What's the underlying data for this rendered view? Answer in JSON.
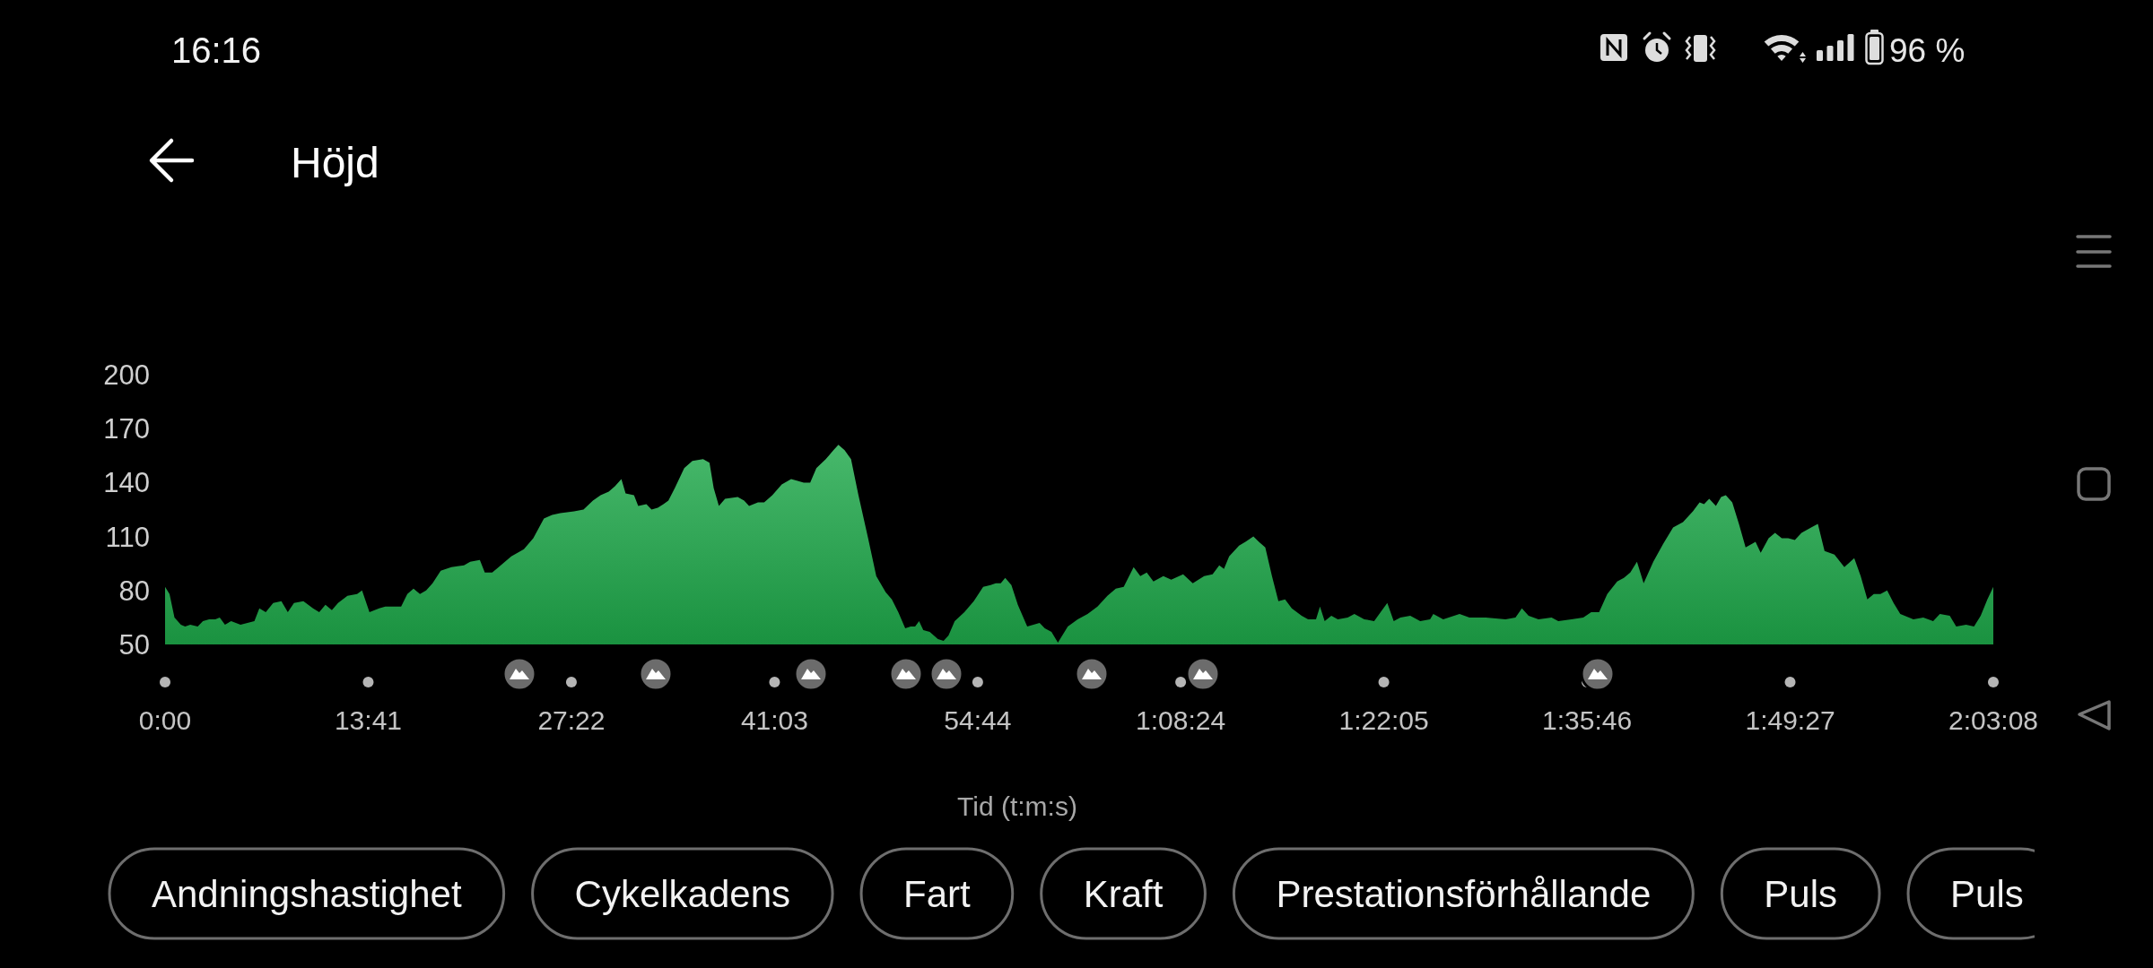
{
  "chart_data": {
    "type": "area",
    "title": "Höjd",
    "xlabel": "Tid (t:m:s)",
    "color": "#1ea84a",
    "x": [
      0,
      18,
      38,
      64,
      81,
      102,
      132,
      153,
      178,
      203,
      221,
      242,
      267,
      305,
      361,
      381,
      407,
      437,
      470,
      496,
      521,
      559,
      598,
      623,
      648,
      674,
      699,
      737,
      776,
      796,
      826,
      865,
      890,
      954,
      979,
      1004,
      1030,
      1055,
      1081,
      1114,
      1157,
      1208,
      1233,
      1272,
      1292,
      1322,
      1348,
      1399,
      1450,
      1488,
      1531,
      1564,
      1597,
      1653,
      1691,
      1729,
      1760,
      1793,
      1818,
      1844,
      1861,
      1895,
      1912,
      1945,
      1966,
      1991,
      2014,
      2034,
      2060,
      2098,
      2131,
      2174,
      2200,
      2217,
      2238,
      2263,
      2314,
      2340,
      2360,
      2378,
      2396,
      2421,
      2454,
      2492,
      2530,
      2556,
      2581,
      2607,
      2632,
      2670,
      2701,
      2721,
      2746,
      2772,
      2802,
      2841,
      2874,
      2912,
      2937,
      2963,
      2991,
      3013,
      3031,
      3047,
      3064,
      3090,
      3123,
      3146,
      3166,
      3191,
      3230,
      3268,
      3306,
      3336,
      3357,
      3377,
      3395,
      3420,
      3446,
      3484,
      3509,
      3534,
      3555,
      3582,
      3608,
      3648,
      3688,
      3728,
      3768,
      3808,
      3842,
      3874,
      3914,
      3941,
      3967,
      3994,
      4034,
      4066,
      4114,
      4153,
      4199,
      4233,
      4260,
      4279,
      4300,
      4340,
      4366,
      4398,
      4420,
      4446,
      4473,
      4499,
      4526,
      4553,
      4593,
      4619,
      4651,
      4667,
      4686,
      4713,
      4739,
      4779,
      4806,
      4846,
      4886,
      4912,
      4939,
      4965,
      4992,
      5032,
      5072,
      5112,
      5125,
      5165,
      5231,
      5271,
      5337,
      5417,
      5457,
      5483,
      5510,
      5550,
      5603,
      5630,
      5683,
      5731,
      5763,
      5795,
      5828,
      5868,
      5895,
      5921,
      5948,
      5975,
      6014,
      6054,
      6094,
      6134,
      6174,
      6201,
      6219,
      6240,
      6267,
      6288,
      6307,
      6333,
      6360,
      6387,
      6413,
      6427,
      6448,
      6480,
      6506,
      6533,
      6559,
      6586,
      6613,
      6652,
      6679,
      6706,
      6746,
      6786,
      6826,
      6852,
      6879,
      6905,
      6932,
      6959,
      6985,
      7012,
      7065,
      7105,
      7145,
      7172,
      7212,
      7238,
      7278,
      7310,
      7337,
      7364,
      7388
    ],
    "values": [
      82,
      78,
      65,
      61,
      60,
      61,
      60,
      63,
      64,
      64,
      65,
      61,
      63,
      61,
      63,
      70,
      68,
      73,
      74,
      68,
      73,
      74,
      70,
      68,
      72,
      69,
      73,
      77,
      78,
      80,
      68,
      70,
      71,
      71,
      78,
      81,
      78,
      80,
      84,
      91,
      93,
      94,
      96,
      97,
      90,
      90,
      93,
      99,
      103,
      109,
      120,
      122,
      123,
      124,
      125,
      130,
      133,
      135,
      138,
      142,
      134,
      133,
      127,
      128,
      125,
      126,
      128,
      130,
      137,
      148,
      152,
      153,
      151,
      137,
      127,
      131,
      132,
      130,
      127,
      128,
      129,
      129,
      133,
      139,
      142,
      141,
      140,
      140,
      148,
      153,
      158,
      161,
      158,
      153,
      133,
      109,
      88,
      79,
      75,
      68,
      59,
      60,
      60,
      63,
      58,
      57,
      53,
      52,
      55,
      63,
      68,
      74,
      82,
      83,
      84,
      84,
      87,
      83,
      72,
      60,
      61,
      62,
      59,
      57,
      51,
      60,
      64,
      67,
      71,
      77,
      81,
      82,
      93,
      88,
      90,
      85,
      88,
      86,
      89,
      84,
      88,
      89,
      94,
      92,
      99,
      105,
      107,
      110,
      107,
      104,
      88,
      74,
      75,
      70,
      66,
      64,
      64,
      71,
      63,
      66,
      64,
      65,
      67,
      64,
      63,
      68,
      73,
      63,
      65,
      66,
      63,
      64,
      67,
      64,
      67,
      65,
      65,
      64,
      65,
      70,
      66,
      64,
      65,
      63,
      64,
      65,
      68,
      68,
      78,
      85,
      87,
      90,
      96,
      84,
      96,
      106,
      115,
      118,
      124,
      129,
      128,
      131,
      127,
      132,
      133,
      129,
      117,
      104,
      106,
      107,
      101,
      109,
      112,
      109,
      109,
      108,
      112,
      115,
      117,
      102,
      100,
      93,
      98,
      88,
      75,
      78,
      78,
      80,
      73,
      67,
      64,
      65,
      63,
      67,
      66,
      60,
      61,
      60,
      66,
      75,
      82
    ],
    "xlim": [
      0,
      7388
    ],
    "ylim": [
      50,
      200
    ],
    "xticks": [
      {
        "value": 0,
        "label": "0:00"
      },
      {
        "value": 821,
        "label": "13:41"
      },
      {
        "value": 1642,
        "label": "27:22"
      },
      {
        "value": 2463,
        "label": "41:03"
      },
      {
        "value": 3284,
        "label": "54:44"
      },
      {
        "value": 4104,
        "label": "1:08:24"
      },
      {
        "value": 4925,
        "label": "1:22:05"
      },
      {
        "value": 5746,
        "label": "1:35:46"
      },
      {
        "value": 6567,
        "label": "1:49:27"
      },
      {
        "value": 7388,
        "label": "2:03:08"
      }
    ],
    "yticks": [
      50,
      80,
      110,
      140,
      170,
      200
    ],
    "annotations": [
      "16:16",
      "96 %",
      "Andningshastighet",
      "Cykelkadens",
      "Fart",
      "Kraft",
      "Prestationsförhållande",
      "Puls",
      "Puls"
    ]
  }
}
